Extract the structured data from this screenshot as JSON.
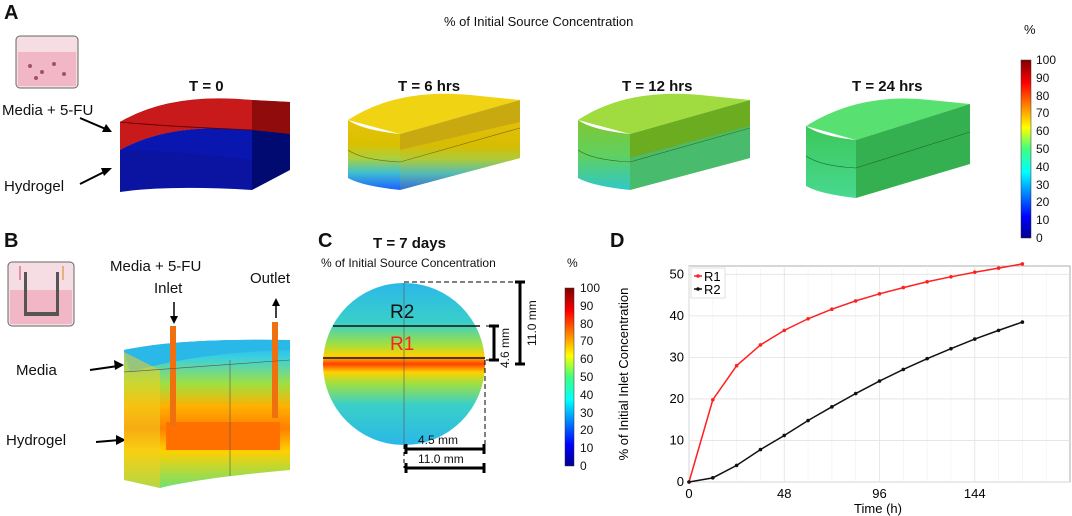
{
  "panels": {
    "a": {
      "letter": "A",
      "title": "% of Initial Source Concentration",
      "unit": "%",
      "label_media": "Media + 5-FU",
      "label_hydrogel": "Hydrogel",
      "times": [
        "T = 0",
        "T = 6 hrs",
        "T = 12 hrs",
        "T = 24 hrs"
      ],
      "colorbar_ticks": [
        "100",
        "90",
        "80",
        "70",
        "60",
        "50",
        "40",
        "30",
        "20",
        "10",
        "0"
      ]
    },
    "b": {
      "letter": "B",
      "label_inlet_line1": "Media + 5-FU",
      "label_inlet_line2": "Inlet",
      "label_outlet": "Outlet",
      "label_media": "Media",
      "label_hydrogel": "Hydrogel"
    },
    "c": {
      "letter": "C",
      "time": "T = 7 days",
      "subtitle": "% of Initial Source Concentration",
      "unit": "%",
      "r2": "R2",
      "r1": "R1",
      "dim_11_vertical": "11.0 mm",
      "dim_46": "4.6 mm",
      "dim_45": "4.5 mm",
      "dim_11_horizontal": "11.0 mm",
      "colorbar_ticks": [
        "100",
        "90",
        "80",
        "70",
        "60",
        "50",
        "40",
        "30",
        "20",
        "10",
        "0"
      ]
    },
    "d": {
      "letter": "D"
    }
  },
  "colors": {
    "r1": "#ff2020",
    "r2": "#111111"
  },
  "chart_data": {
    "type": "line",
    "title": "",
    "xlabel": "Time (h)",
    "ylabel": "% of Initial Inlet Concentration",
    "xlim": [
      0,
      192
    ],
    "ylim": [
      0,
      52
    ],
    "xticks": [
      0,
      48,
      96,
      144
    ],
    "yticks": [
      0,
      10,
      20,
      30,
      40,
      50
    ],
    "legend": "top-left",
    "grid": true,
    "x": [
      0,
      12,
      24,
      36,
      48,
      60,
      72,
      84,
      96,
      108,
      120,
      132,
      144,
      156,
      168
    ],
    "series": [
      {
        "name": "R1",
        "color": "#ff2020",
        "values": [
          0,
          19.8,
          28,
          33,
          36.5,
          39.3,
          41.6,
          43.6,
          45.3,
          46.8,
          48.2,
          49.4,
          50.5,
          51.5,
          52.5
        ]
      },
      {
        "name": "R2",
        "color": "#111111",
        "values": [
          0,
          1.0,
          4.0,
          7.8,
          11.2,
          14.8,
          18.1,
          21.3,
          24.3,
          27.1,
          29.7,
          32.1,
          34.4,
          36.5,
          38.5
        ]
      }
    ]
  }
}
